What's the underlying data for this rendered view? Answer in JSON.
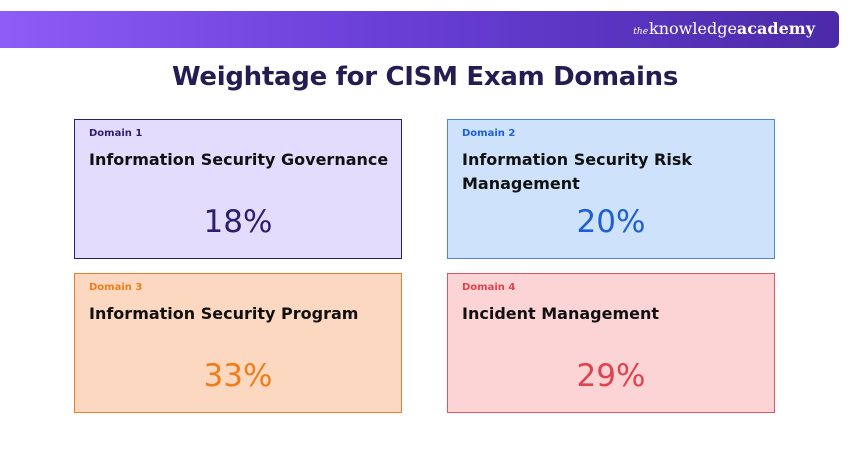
{
  "brand": {
    "prefix": "the",
    "word1": "knowledge",
    "word2": "academy"
  },
  "title": "Weightage for CISM Exam Domains",
  "domains": [
    {
      "label": "Domain 1",
      "name": "Information Security Governance",
      "percent": "18%",
      "accent": "#2a1f6e",
      "background": "#e4dcfd"
    },
    {
      "label": "Domain 2",
      "name": "Information Security Risk Management",
      "percent": "20%",
      "accent": "#1e5fd6",
      "background": "#cfe2fb"
    },
    {
      "label": "Domain 3",
      "name": "Information Security Program",
      "percent": "33%",
      "accent": "#ef7d1a",
      "background": "#fcd8c1"
    },
    {
      "label": "Domain 4",
      "name": "Incident Management",
      "percent": "29%",
      "accent": "#e0434c",
      "background": "#fdd4d6"
    }
  ]
}
